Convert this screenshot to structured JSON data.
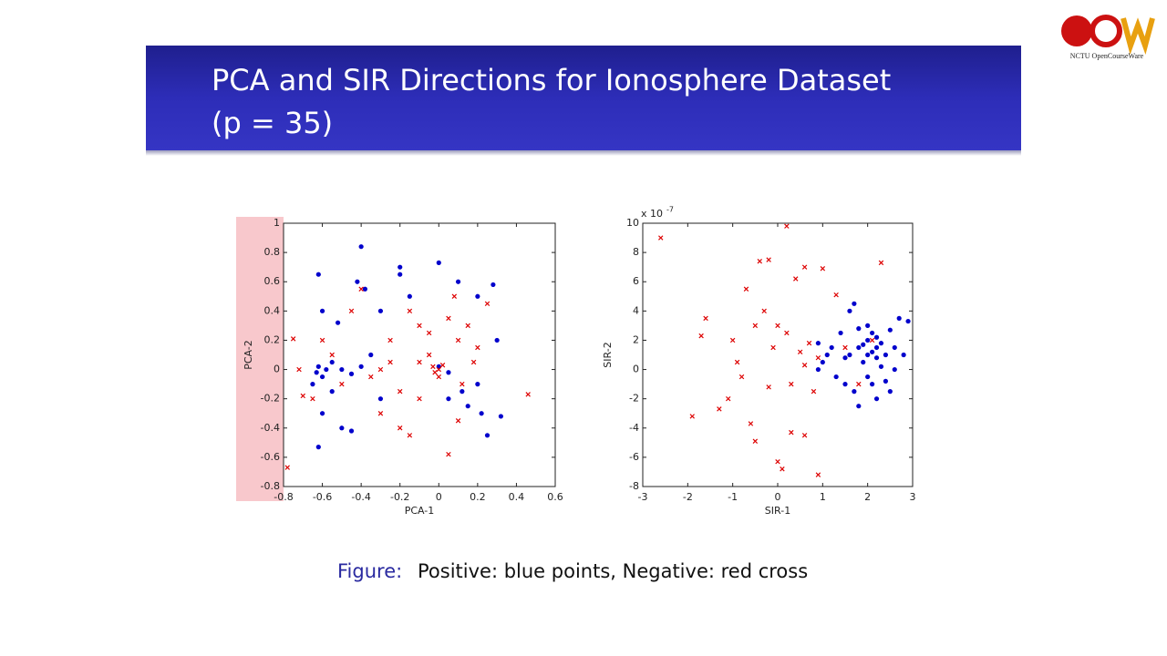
{
  "slide": {
    "title": [
      "PCA and SIR Directions for Ionosphere Dataset",
      "(p = 35)"
    ],
    "caption": {
      "label": "Figure:",
      "text": "Positive: blue points, Negative: red cross"
    },
    "logo": {
      "text": "NCTU OpenCourseWare"
    }
  },
  "chart_data": [
    {
      "type": "scatter",
      "xlabel": "PCA-1",
      "ylabel": "PCA-2",
      "xlim": [
        -0.8,
        0.6
      ],
      "xticks": [
        -0.8,
        -0.6,
        -0.4,
        -0.2,
        0,
        0.2,
        0.4,
        0.6
      ],
      "ylim": [
        -0.8,
        1
      ],
      "yticks": [
        -0.8,
        -0.6,
        -0.4,
        -0.2,
        0,
        0.2,
        0.4,
        0.6,
        0.8,
        1
      ],
      "series": [
        {
          "color": "#0000cc",
          "marker": "dot",
          "x": [
            -0.63,
            -0.62,
            -0.6,
            -0.58,
            -0.65,
            -0.55,
            -0.5,
            -0.45,
            -0.4,
            -0.4,
            -0.38,
            -0.3,
            -0.62,
            -0.6,
            -0.52,
            -0.42,
            -0.6,
            -0.62,
            -0.5,
            -0.45,
            -0.3,
            -0.2,
            -0.15,
            0,
            0,
            0.05,
            0.1,
            0.12,
            0.15,
            0.2,
            0.22,
            0.25,
            0.28,
            0.3,
            0.32,
            -0.35,
            -0.2,
            0.05,
            0.2,
            -0.55
          ],
          "values": [
            -0.02,
            0.02,
            -0.05,
            0,
            -0.1,
            0.05,
            0,
            -0.03,
            0.02,
            0.84,
            0.55,
            0.4,
            0.65,
            0.4,
            0.32,
            0.6,
            -0.3,
            -0.53,
            -0.4,
            -0.42,
            -0.2,
            0.7,
            0.5,
            0.73,
            0.02,
            -0.02,
            0.6,
            -0.15,
            -0.25,
            0.5,
            -0.3,
            -0.45,
            0.58,
            0.2,
            -0.32,
            0.1,
            0.65,
            -0.2,
            -0.1,
            -0.15
          ]
        },
        {
          "color": "#dd0000",
          "marker": "x",
          "x": [
            -0.75,
            -0.78,
            -0.7,
            -0.72,
            -0.55,
            -0.5,
            -0.4,
            -0.35,
            -0.3,
            -0.25,
            -0.2,
            -0.15,
            -0.1,
            -0.05,
            -0.02,
            0,
            -0.03,
            0.02,
            -0.1,
            -0.2,
            -0.15,
            0.05,
            0.08,
            0.1,
            0.12,
            0.18,
            0.2,
            0.05,
            0.46,
            -0.3,
            -0.45,
            -0.25,
            -0.1,
            0,
            0.15,
            -0.6,
            -0.65,
            0.1,
            -0.05,
            0.25
          ],
          "values": [
            0.21,
            -0.67,
            -0.18,
            0,
            0.1,
            -0.1,
            0.55,
            -0.05,
            0,
            0.2,
            -0.15,
            0.4,
            0.3,
            0.1,
            -0.02,
            0,
            0.02,
            0.03,
            -0.2,
            -0.4,
            -0.45,
            0.35,
            0.5,
            0.2,
            -0.1,
            0.05,
            0.15,
            -0.58,
            -0.17,
            -0.3,
            0.4,
            0.05,
            0.05,
            -0.05,
            0.3,
            0.2,
            -0.2,
            -0.35,
            0.25,
            0.45
          ]
        }
      ]
    },
    {
      "type": "scatter",
      "xlabel": "SIR-1",
      "ylabel": "SIR-2",
      "y_multiplier": {
        "base": "x 10",
        "exponent": "-7"
      },
      "xlim": [
        -3,
        3
      ],
      "xticks": [
        -3,
        -2,
        -1,
        0,
        1,
        2,
        3
      ],
      "ylim": [
        -8,
        10
      ],
      "yticks": [
        -8,
        -6,
        -4,
        -2,
        0,
        2,
        4,
        6,
        8,
        10
      ],
      "series": [
        {
          "color": "#0000cc",
          "marker": "dot",
          "x": [
            1.6,
            1.8,
            2.0,
            2.1,
            2.2,
            2.3,
            1.9,
            2.0,
            2.1,
            2.4,
            1.7,
            1.6,
            1.5,
            1.8,
            2.2,
            2.5,
            2.7,
            2.9,
            2.8,
            2.6,
            1.2,
            1.0,
            1.3,
            0.9,
            1.4,
            2.0,
            2.2,
            1.9,
            2.3,
            2.5,
            2.1,
            1.7,
            1.1,
            0.9,
            2.4,
            2.6,
            1.8,
            2.0,
            2.2,
            1.5
          ],
          "values": [
            1.0,
            1.5,
            2.0,
            1.2,
            0.8,
            1.8,
            0.5,
            -0.5,
            2.5,
            1.0,
            4.5,
            4.0,
            -1.0,
            -2.5,
            -2.0,
            -1.5,
            3.5,
            3.3,
            1.0,
            0,
            1.5,
            0.5,
            -0.5,
            0,
            2.5,
            3.0,
            2.2,
            1.7,
            0.2,
            2.7,
            -1.0,
            -1.5,
            1.0,
            1.8,
            -0.8,
            1.5,
            2.8,
            1.0,
            1.5,
            0.8
          ]
        },
        {
          "color": "#dd0000",
          "marker": "x",
          "x": [
            -2.6,
            0.2,
            2.3,
            -1.9,
            -1.6,
            -1.7,
            -1.3,
            -1.0,
            -0.8,
            -0.6,
            -0.5,
            -0.4,
            -0.2,
            0,
            0.1,
            0.3,
            0.6,
            0.9,
            1.0,
            0.6,
            0.4,
            -0.3,
            -0.5,
            -0.1,
            0.2,
            0.5,
            0.7,
            0.9,
            0.6,
            0.3,
            -0.2,
            -0.9,
            -1.1,
            0.8,
            1.3,
            1.8,
            2.1,
            1.5,
            0,
            -0.7
          ],
          "values": [
            9.0,
            9.8,
            7.3,
            -3.2,
            3.5,
            2.3,
            -2.7,
            2.0,
            -0.5,
            -3.7,
            -4.9,
            7.4,
            7.5,
            -6.3,
            -6.8,
            -4.3,
            -4.5,
            -7.2,
            6.9,
            7.0,
            6.2,
            4.0,
            3.0,
            1.5,
            2.5,
            1.2,
            1.8,
            0.8,
            0.3,
            -1.0,
            -1.2,
            0.5,
            -2.0,
            -1.5,
            5.1,
            -1.0,
            2.0,
            1.5,
            3.0,
            5.5
          ]
        }
      ]
    }
  ]
}
